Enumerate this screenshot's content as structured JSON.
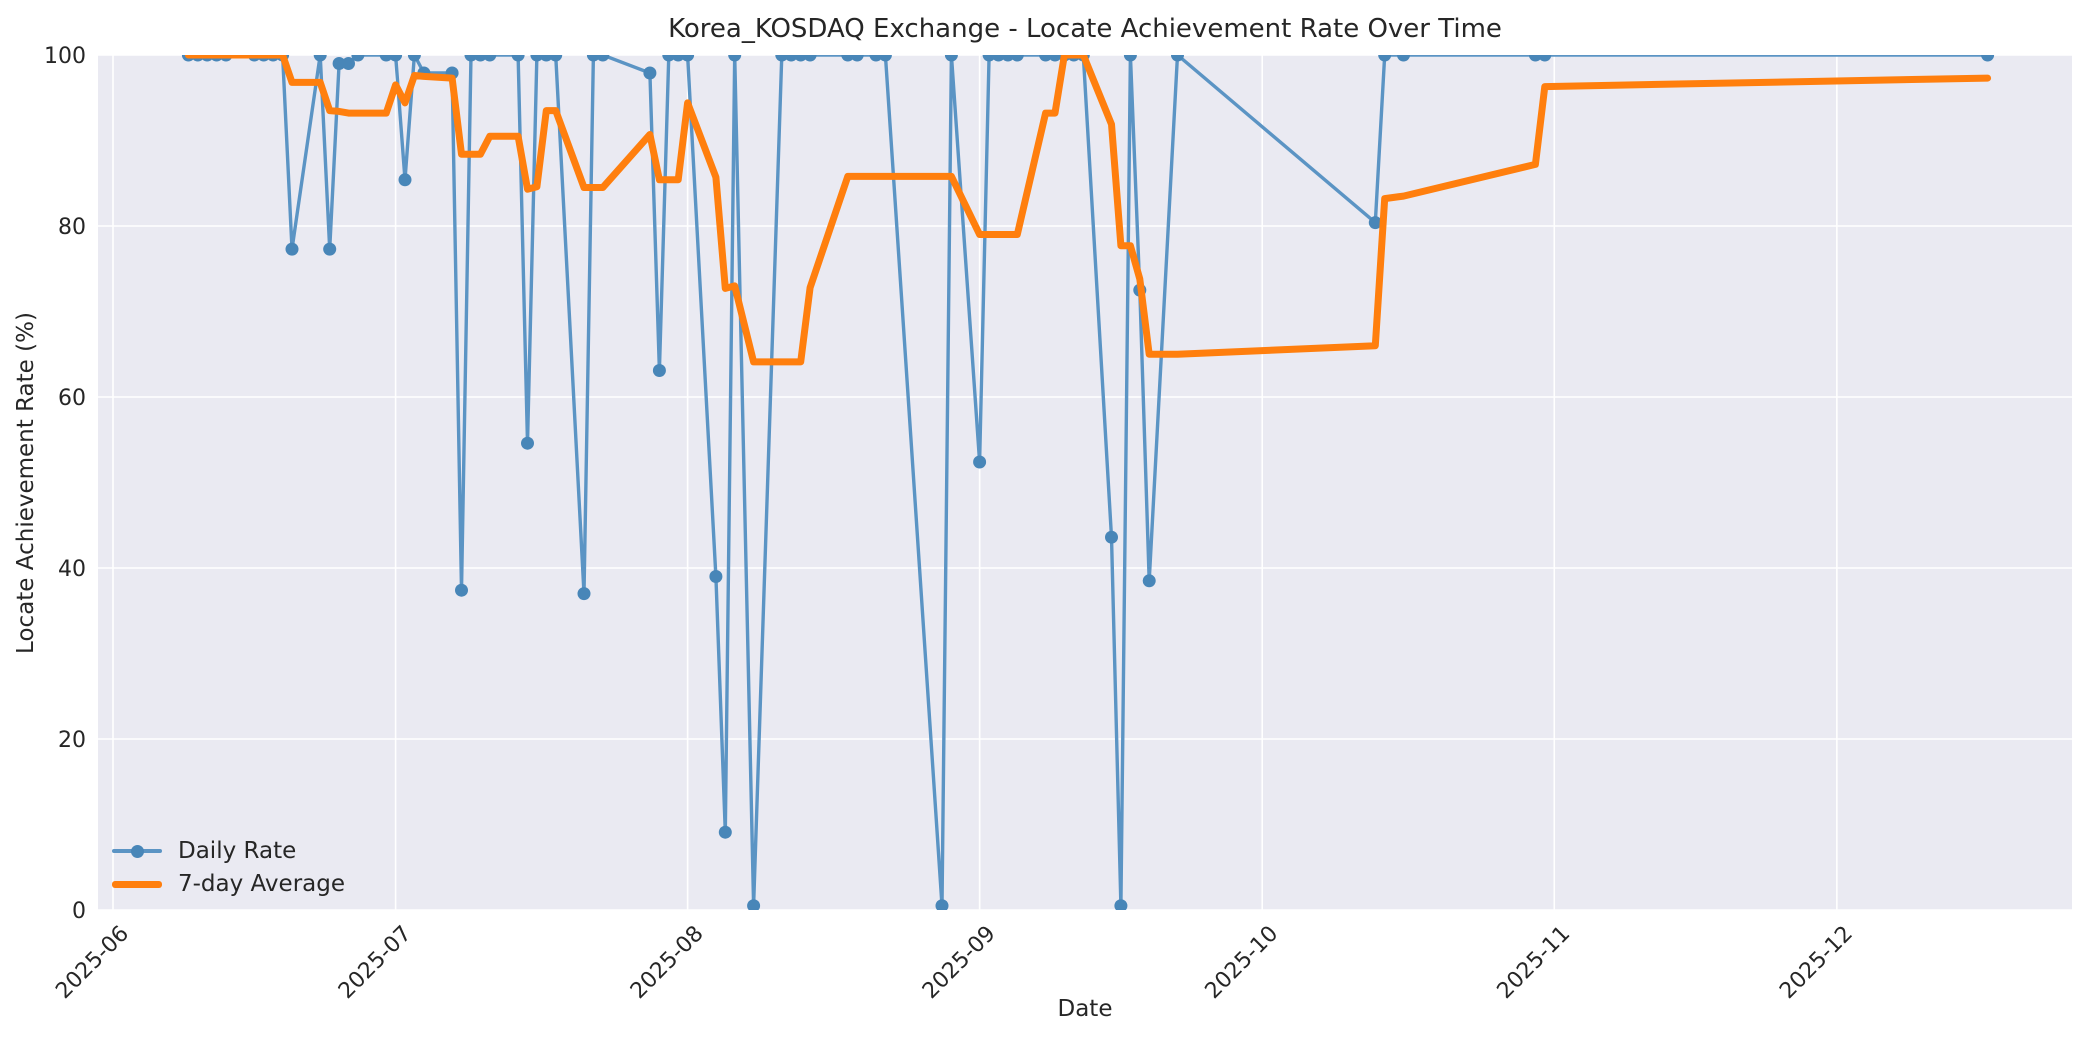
{
  "figure": {
    "background": "#ffffff",
    "plot_background": "#eaeaf2",
    "grid_color": "#ffffff",
    "text_color": "#262626"
  },
  "chart_data": {
    "type": "line",
    "title": "Korea_KOSDAQ Exchange - Locate Achievement Rate Over Time",
    "xlabel": "Date",
    "ylabel": "Locate Achievement Rate (%)",
    "ylim": [
      0,
      100
    ],
    "grid": true,
    "legend_position": "lower left",
    "x_tick_labels": [
      "2025-06",
      "2025-07",
      "2025-08",
      "2025-09",
      "2025-10",
      "2025-11",
      "2025-12"
    ],
    "y_tick_labels": [
      0,
      20,
      40,
      60,
      80,
      100
    ],
    "dates": [
      "2025-06-09",
      "2025-06-10",
      "2025-06-11",
      "2025-06-12",
      "2025-06-13",
      "2025-06-16",
      "2025-06-17",
      "2025-06-18",
      "2025-06-19",
      "2025-06-20",
      "2025-06-23",
      "2025-06-24",
      "2025-06-25",
      "2025-06-26",
      "2025-06-27",
      "2025-06-30",
      "2025-07-01",
      "2025-07-02",
      "2025-07-03",
      "2025-07-04",
      "2025-07-07",
      "2025-07-08",
      "2025-07-09",
      "2025-07-10",
      "2025-07-11",
      "2025-07-14",
      "2025-07-15",
      "2025-07-16",
      "2025-07-17",
      "2025-07-18",
      "2025-07-21",
      "2025-07-22",
      "2025-07-23",
      "2025-07-28",
      "2025-07-29",
      "2025-07-30",
      "2025-07-31",
      "2025-08-01",
      "2025-08-04",
      "2025-08-05",
      "2025-08-06",
      "2025-08-08",
      "2025-08-11",
      "2025-08-12",
      "2025-08-13",
      "2025-08-14",
      "2025-08-18",
      "2025-08-19",
      "2025-08-21",
      "2025-08-22",
      "2025-08-28",
      "2025-08-29",
      "2025-09-01",
      "2025-09-02",
      "2025-09-03",
      "2025-09-04",
      "2025-09-05",
      "2025-09-08",
      "2025-09-09",
      "2025-09-10",
      "2025-09-11",
      "2025-09-12",
      "2025-09-15",
      "2025-09-16",
      "2025-09-17",
      "2025-09-18",
      "2025-09-19",
      "2025-09-22",
      "2025-10-13",
      "2025-10-14",
      "2025-10-16",
      "2025-10-30",
      "2025-10-31",
      "2025-12-17"
    ],
    "series": [
      {
        "name": "Daily Rate",
        "color": "#5b94c4",
        "marker_color": "#4886b8",
        "marker": "circle",
        "line_width": 3.4,
        "values": [
          100,
          100,
          100,
          100,
          100,
          100,
          100,
          100,
          100,
          77.3,
          100,
          77.3,
          99,
          99,
          100,
          100,
          100,
          85.4,
          100,
          97.9,
          97.9,
          37.4,
          100,
          100,
          100,
          100,
          54.6,
          100,
          100,
          100,
          37,
          100,
          100,
          97.9,
          63.1,
          100,
          100,
          100,
          39,
          9.1,
          100,
          0.5,
          100,
          100,
          100,
          100,
          100,
          100,
          100,
          100,
          0.5,
          100,
          52.4,
          100,
          100,
          100,
          100,
          100,
          100,
          100,
          100,
          100,
          43.6,
          0.5,
          100,
          72.5,
          38.5,
          100,
          80.4,
          100,
          100,
          100,
          100,
          100
        ]
      },
      {
        "name": "7-day Average",
        "color": "#ff7f0e",
        "marker": "none",
        "line_width": 7,
        "values": [
          100,
          100,
          100,
          100,
          100,
          100,
          100,
          100,
          100,
          96.8,
          96.8,
          93.5,
          93.4,
          93.2,
          93.2,
          93.2,
          96.5,
          94.4,
          97.6,
          97.5,
          97.3,
          88.4,
          88.4,
          88.4,
          90.5,
          90.5,
          84.3,
          84.6,
          93.5,
          93.5,
          84.5,
          84.5,
          84.5,
          90.7,
          85.4,
          85.4,
          85.4,
          94.4,
          85.7,
          72.7,
          73.0,
          64.1,
          64.1,
          64.1,
          64.1,
          72.8,
          85.8,
          85.8,
          85.8,
          85.8,
          85.8,
          85.8,
          79.0,
          79.0,
          79.0,
          79.0,
          79.0,
          93.2,
          93.2,
          100,
          100,
          100,
          91.9,
          77.7,
          77.7,
          73.8,
          65.0,
          65.0,
          66.0,
          83.2,
          83.5,
          87.2,
          96.3,
          97.3
        ]
      }
    ]
  },
  "legend": {
    "items": [
      {
        "label": "Daily Rate"
      },
      {
        "label": "7-day Average"
      }
    ]
  }
}
